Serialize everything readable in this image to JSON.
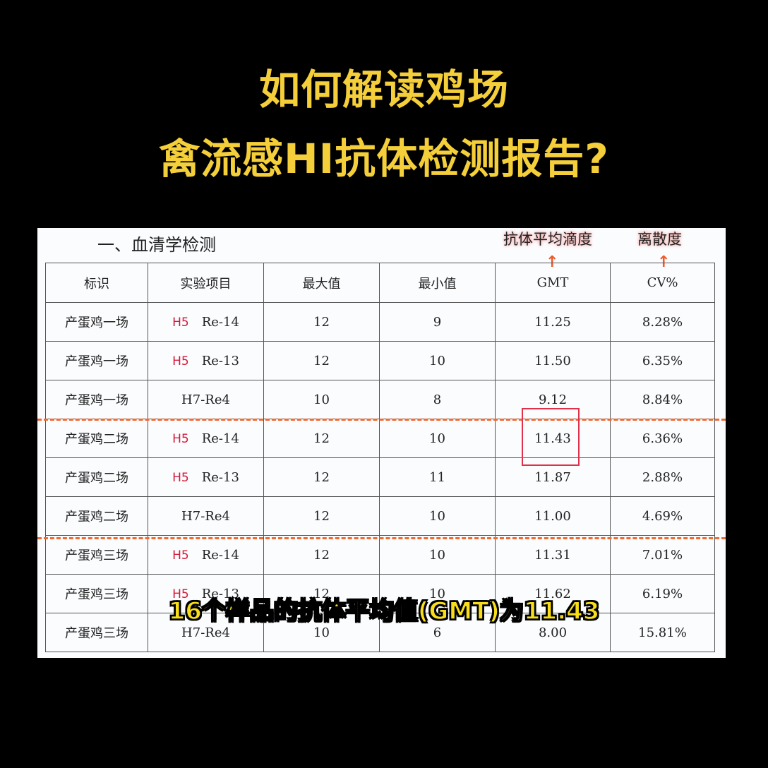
{
  "title": {
    "line1": "如何解读鸡场",
    "line2": "禽流感HI抗体检测报告?"
  },
  "section_title": "一、血清学检测",
  "annotations": {
    "gmt_note": "抗体平均滴度",
    "cv_note": "离散度",
    "arrow_icon": "up-arrow"
  },
  "colors": {
    "title": "#f4cf3a",
    "accent_orange": "#f06a30",
    "highlight_red": "#e0304a",
    "h5_red": "#d21a3a"
  },
  "table": {
    "headers": [
      "标识",
      "实验项目",
      "最大值",
      "最小值",
      "GMT",
      "CV%"
    ],
    "rows": [
      {
        "id": "产蛋鸡一场",
        "tag": "H5",
        "item": "Re-14",
        "max": "12",
        "min": "9",
        "gmt": "11.25",
        "cv": "8.28%"
      },
      {
        "id": "产蛋鸡一场",
        "tag": "H5",
        "item": "Re-13",
        "max": "12",
        "min": "10",
        "gmt": "11.50",
        "cv": "6.35%"
      },
      {
        "id": "产蛋鸡一场",
        "tag": "",
        "item": "H7-Re4",
        "max": "10",
        "min": "8",
        "gmt": "9.12",
        "cv": "8.84%"
      },
      {
        "id": "产蛋鸡二场",
        "tag": "H5",
        "item": "Re-14",
        "max": "12",
        "min": "10",
        "gmt": "11.43",
        "cv": "6.36%"
      },
      {
        "id": "产蛋鸡二场",
        "tag": "H5",
        "item": "Re-13",
        "max": "12",
        "min": "11",
        "gmt": "11.87",
        "cv": "2.88%"
      },
      {
        "id": "产蛋鸡二场",
        "tag": "",
        "item": "H7-Re4",
        "max": "12",
        "min": "10",
        "gmt": "11.00",
        "cv": "4.69%"
      },
      {
        "id": "产蛋鸡三场",
        "tag": "H5",
        "item": "Re-14",
        "max": "12",
        "min": "10",
        "gmt": "11.31",
        "cv": "7.01%"
      },
      {
        "id": "产蛋鸡三场",
        "tag": "H5",
        "item": "Re-13",
        "max": "12",
        "min": "10",
        "gmt": "11.62",
        "cv": "6.19%"
      },
      {
        "id": "产蛋鸡三场",
        "tag": "",
        "item": "H7-Re4",
        "max": "10",
        "min": "6",
        "gmt": "8.00",
        "cv": "15.81%"
      }
    ]
  },
  "subtitle": "16个样品的抗体平均值(GMT)为11.43"
}
